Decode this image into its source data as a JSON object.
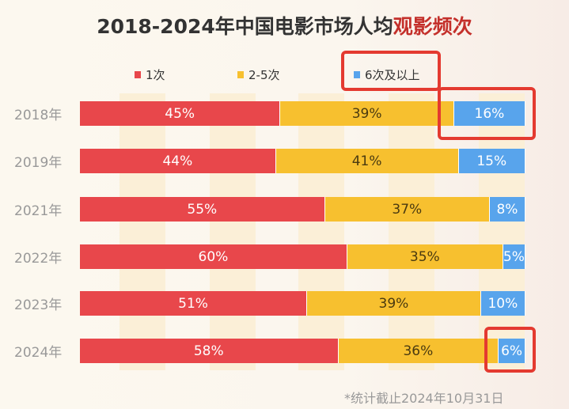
{
  "chart_data": {
    "type": "bar",
    "orientation": "horizontal",
    "stacked": true,
    "title_main": "2018-2024年中国电影市场人均",
    "title_highlight": "观影频次",
    "categories": [
      "2018年",
      "2019年",
      "2021年",
      "2022年",
      "2023年",
      "2024年"
    ],
    "series": [
      {
        "name": "1次",
        "color": "#e8474b",
        "text_color": "#ffffff",
        "values": [
          45,
          44,
          55,
          60,
          51,
          58
        ]
      },
      {
        "name": "2-5次",
        "color": "#f7c02f",
        "text_color": "#4a3a10",
        "values": [
          39,
          41,
          37,
          35,
          39,
          36
        ]
      },
      {
        "name": "6次及以上",
        "color": "#58a4ec",
        "text_color": "#ffffff",
        "values": [
          16,
          15,
          8,
          5,
          10,
          6
        ]
      }
    ],
    "xlim": [
      0,
      100
    ],
    "unit": "%",
    "legend": "top",
    "footnote": "*统计截止2024年10月31日",
    "highlight_color": "#e43a30"
  }
}
